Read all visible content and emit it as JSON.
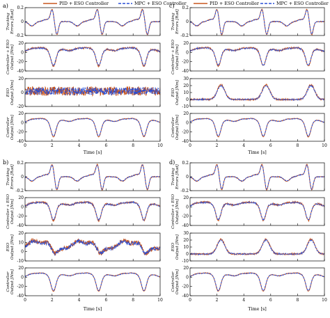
{
  "legend": {
    "entries": [
      {
        "label": "PID + ESO Controller",
        "color": "#c8561e",
        "dash": "solid"
      },
      {
        "label": "MPC + ESO Controller",
        "color": "#2a4fd6",
        "dash": "dashed"
      }
    ]
  },
  "colors": {
    "pid": "#c8561e",
    "mpc": "#2a4fd6"
  },
  "chart_data": [
    {
      "panel": "a)",
      "type": "line",
      "xlim": [
        0,
        10
      ],
      "xticks": [
        "0",
        "2",
        "4",
        "6",
        "8",
        "10"
      ],
      "xlabel": "Time [s]",
      "subplots": [
        {
          "key": "tracking",
          "ylabel": [
            "Tracking",
            "Errors [Rad]"
          ],
          "ylim": [
            -0.2,
            0.2
          ],
          "yticks": [
            "0.2",
            "0",
            "-0.2"
          ],
          "noise": 0.005
        },
        {
          "key": "ctrleso",
          "ylabel": [
            "Controller + ESO",
            "Output [Nm]"
          ],
          "ylim": [
            -40,
            20
          ],
          "yticks": [
            "20",
            "0",
            "-20",
            "-40"
          ],
          "noise": 1.5
        },
        {
          "key": "eso",
          "ylabel": [
            "ESO",
            "Output [Nm]"
          ],
          "ylim": [
            -20,
            20
          ],
          "yticks": [
            "20",
            "0",
            "-20"
          ],
          "noise": 6
        },
        {
          "key": "ctrl",
          "ylabel": [
            "Controller",
            "Output [Nm]"
          ],
          "ylim": [
            -40,
            20
          ],
          "yticks": [
            "20",
            "0",
            "-20",
            "-40"
          ],
          "noise": 0.6
        }
      ]
    },
    {
      "panel": "b)",
      "type": "line",
      "xlim": [
        0,
        10
      ],
      "xticks": [
        "0",
        "2",
        "4",
        "6",
        "8",
        "10"
      ],
      "xlabel": "Time [s]",
      "subplots": [
        {
          "key": "tracking",
          "ylabel": [
            "Tracking",
            "Errors [Rad]"
          ],
          "ylim": [
            -0.2,
            0.2
          ],
          "yticks": [
            "0.2",
            "0",
            "-0.2"
          ],
          "noise": 0.005
        },
        {
          "key": "ctrleso",
          "ylabel": [
            "Controller + ESO",
            "Output [Nm]"
          ],
          "ylim": [
            -40,
            20
          ],
          "yticks": [
            "20",
            "0",
            "-20",
            "-40"
          ],
          "noise": 1.5
        },
        {
          "key": "eso",
          "ylabel": [
            "ESO",
            "Output [Nm]"
          ],
          "ylim": [
            -10,
            20
          ],
          "yticks": [
            "20",
            "10",
            "0",
            "-10"
          ],
          "noise": 2.2
        },
        {
          "key": "ctrl",
          "ylabel": [
            "Controller",
            "Output [Nm]"
          ],
          "ylim": [
            -40,
            20
          ],
          "yticks": [
            "20",
            "0",
            "-20",
            "-40"
          ],
          "noise": 0.6
        }
      ]
    },
    {
      "panel": "c)",
      "type": "line",
      "xlim": [
        0,
        10
      ],
      "xticks": [
        "0",
        "2",
        "4",
        "6",
        "8",
        "10"
      ],
      "xlabel": "Time [s]",
      "subplots": [
        {
          "key": "tracking",
          "ylabel": [
            "Tracking",
            "Errors [Rad]"
          ],
          "ylim": [
            -0.2,
            0.2
          ],
          "yticks": [
            "0.2",
            "0",
            "-0.2"
          ],
          "noise": 0.005
        },
        {
          "key": "ctrleso",
          "ylabel": [
            "Controller + ESO",
            "Output [Nm]"
          ],
          "ylim": [
            -40,
            20
          ],
          "yticks": [
            "20",
            "0",
            "-20",
            "-40"
          ],
          "noise": 1.5
        },
        {
          "key": "eso",
          "ylabel": [
            "ESO",
            "Output [Nm]"
          ],
          "ylim": [
            -10,
            30
          ],
          "yticks": [
            "30",
            "20",
            "10",
            "0",
            "-10"
          ],
          "noise": 1.0
        },
        {
          "key": "ctrl",
          "ylabel": [
            "Controller",
            "Output [Nm]"
          ],
          "ylim": [
            -40,
            20
          ],
          "yticks": [
            "20",
            "0",
            "-20",
            "-40"
          ],
          "noise": 0.6
        }
      ]
    },
    {
      "panel": "d)",
      "type": "line",
      "xlim": [
        0,
        10
      ],
      "xticks": [
        "0",
        "2",
        "4",
        "6",
        "8",
        "10"
      ],
      "xlabel": "Time [s]",
      "subplots": [
        {
          "key": "tracking",
          "ylabel": [
            "Tracking",
            "Errors [Rad]"
          ],
          "ylim": [
            -0.2,
            0.2
          ],
          "yticks": [
            "0.2",
            "0",
            "-0.2"
          ],
          "noise": 0.005
        },
        {
          "key": "ctrleso",
          "ylabel": [
            "Controller + ESO",
            "Output [Nm]"
          ],
          "ylim": [
            -40,
            20
          ],
          "yticks": [
            "20",
            "0",
            "-20",
            "-40"
          ],
          "noise": 1.5
        },
        {
          "key": "eso",
          "ylabel": [
            "ESO",
            "Output [Nm]"
          ],
          "ylim": [
            -10,
            30
          ],
          "yticks": [
            "30",
            "20",
            "10",
            "0",
            "-10"
          ],
          "noise": 1.0
        },
        {
          "key": "ctrl",
          "ylabel": [
            "Controller",
            "Output [Nm]"
          ],
          "ylim": [
            -40,
            20
          ],
          "yticks": [
            "20",
            "0",
            "-20",
            "-40"
          ],
          "noise": 0.6
        }
      ]
    }
  ]
}
